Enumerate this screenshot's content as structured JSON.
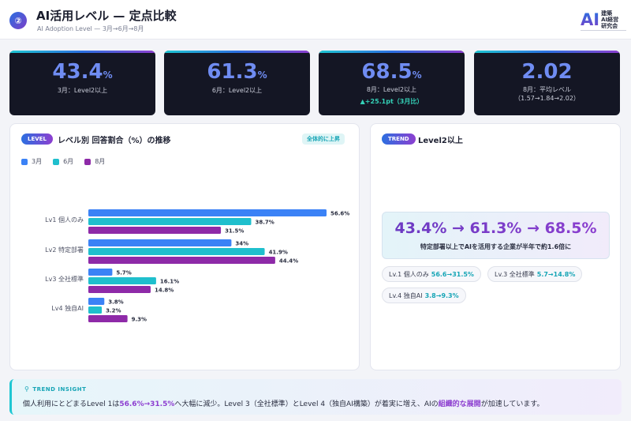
{
  "header": {
    "step": "②",
    "title": "AI活用レベル — 定点比較",
    "subtitle": "AI Adoption Level — 3月→6月→8月",
    "logo_mark": "AI",
    "logo_line1": "建築",
    "logo_line2": "AI経営",
    "logo_line3": "研究会"
  },
  "kpis": [
    {
      "value": "43.4",
      "unit": "%",
      "label": "3月：Level2以上",
      "sub": "",
      "delta": ""
    },
    {
      "value": "61.3",
      "unit": "%",
      "label": "6月：Level2以上",
      "sub": "",
      "delta": ""
    },
    {
      "value": "68.5",
      "unit": "%",
      "label": "8月：Level2以上",
      "sub": "",
      "delta": "▲+25.1pt（3月比）"
    },
    {
      "value": "2.02",
      "unit": "",
      "label": "8月：平均レベル",
      "sub": "（1.57→1.84→2.02）",
      "delta": ""
    }
  ],
  "left_panel": {
    "pill": "LEVEL",
    "title": "レベル別 回答割合（%）の推移",
    "tag": "全体的に上昇"
  },
  "right_panel": {
    "pill": "TREND",
    "title": "Level2以上",
    "headline": "43.4% → 61.3% → 68.5%",
    "headline_sub": "特定部署以上でAIを活用する企業が半年で約1.6倍に",
    "chips": [
      {
        "label": "Lv.1 個人のみ",
        "value": "56.6→31.5%"
      },
      {
        "label": "Lv.3 全社標準",
        "value": "5.7→14.8%"
      },
      {
        "label": "Lv.4 独自AI",
        "value": "3.8→9.3%"
      }
    ]
  },
  "chart_data": {
    "type": "bar",
    "orientation": "horizontal",
    "categories": [
      "Lv1 個人のみ",
      "Lv2 特定部署",
      "Lv3 全社標準",
      "Lv4 独自AI"
    ],
    "series": [
      {
        "name": "3月",
        "color": "#3b82f6",
        "values": [
          56.6,
          34,
          5.7,
          3.8
        ],
        "labels": [
          "56.6%",
          "34%",
          "5.7%",
          "3.8%"
        ]
      },
      {
        "name": "6月",
        "color": "#1fbfcd",
        "values": [
          38.7,
          41.9,
          16.1,
          3.2
        ],
        "labels": [
          "38.7%",
          "41.9%",
          "16.1%",
          "3.2%"
        ]
      },
      {
        "name": "8月",
        "color": "#8e2aa8",
        "values": [
          31.5,
          44.4,
          14.8,
          9.3
        ],
        "labels": [
          "31.5%",
          "44.4%",
          "14.8%",
          "9.3%"
        ]
      }
    ],
    "xlim": [
      0,
      60
    ],
    "legend_position": "top-left",
    "grid": false
  },
  "insight": {
    "title": "TREND INSIGHT",
    "icon": "search-icon",
    "text_a": "個人利用にとどまるLevel 1は",
    "text_hl1": "56.6%→31.5%",
    "text_b": "へ大幅に減少。Level 3（全社標準）とLevel 4（独自AI構築）が着実に増え、AIの",
    "text_hl2": "組織的な展開",
    "text_c": "が加速しています。"
  }
}
